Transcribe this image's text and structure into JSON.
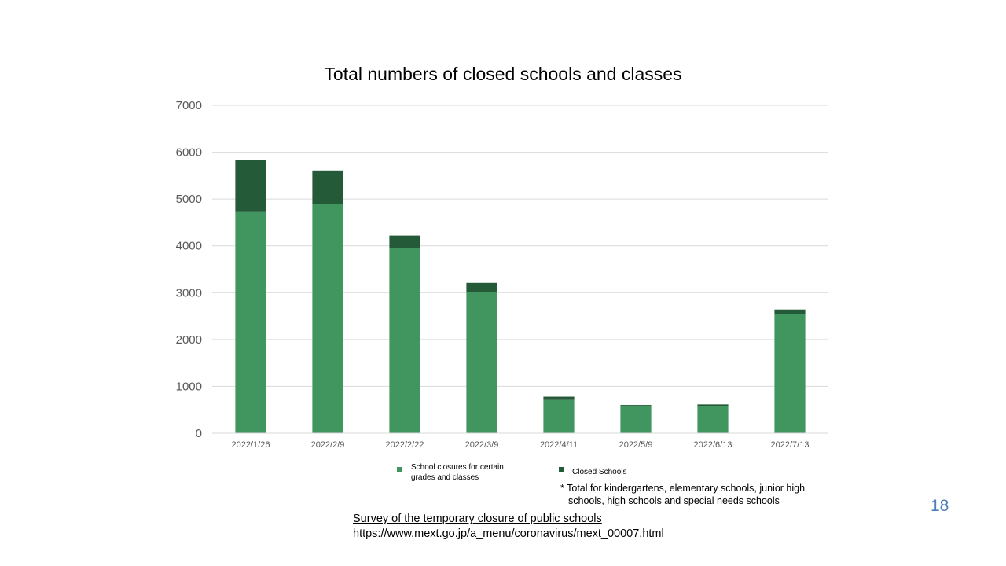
{
  "chart_data": {
    "type": "bar",
    "stacked": true,
    "title": "Total numbers of closed schools and classes",
    "categories": [
      "2022/1/26",
      "2022/2/9",
      "2022/2/22",
      "2022/3/9",
      "2022/4/11",
      "2022/5/9",
      "2022/6/13",
      "2022/7/13"
    ],
    "series": [
      {
        "name": "School closures for certain grades and classes",
        "color": "#41955e",
        "values": [
          4720,
          4890,
          3950,
          3020,
          710,
          590,
          580,
          2540
        ]
      },
      {
        "name": "Closed Schools",
        "color": "#255a38",
        "values": [
          1110,
          720,
          270,
          190,
          70,
          15,
          35,
          100
        ]
      }
    ],
    "ylim": [
      0,
      7000
    ],
    "yticks": [
      0,
      1000,
      2000,
      3000,
      4000,
      5000,
      6000,
      7000
    ],
    "grid": true,
    "legend": "bottom"
  },
  "legend": {
    "item1_line1": "School closures for certain",
    "item1_line2": "grades and classes",
    "item2": "Closed Schools"
  },
  "note": {
    "line1": "* Total for kindergartens, elementary schools, junior high",
    "line2": "schools, high schools and special needs schools"
  },
  "source": {
    "line1": "Survey of the temporary closure of public schools",
    "line2": "https://www.mext.go.jp/a_menu/coronavirus/mext_00007.html"
  },
  "page_number": "18"
}
